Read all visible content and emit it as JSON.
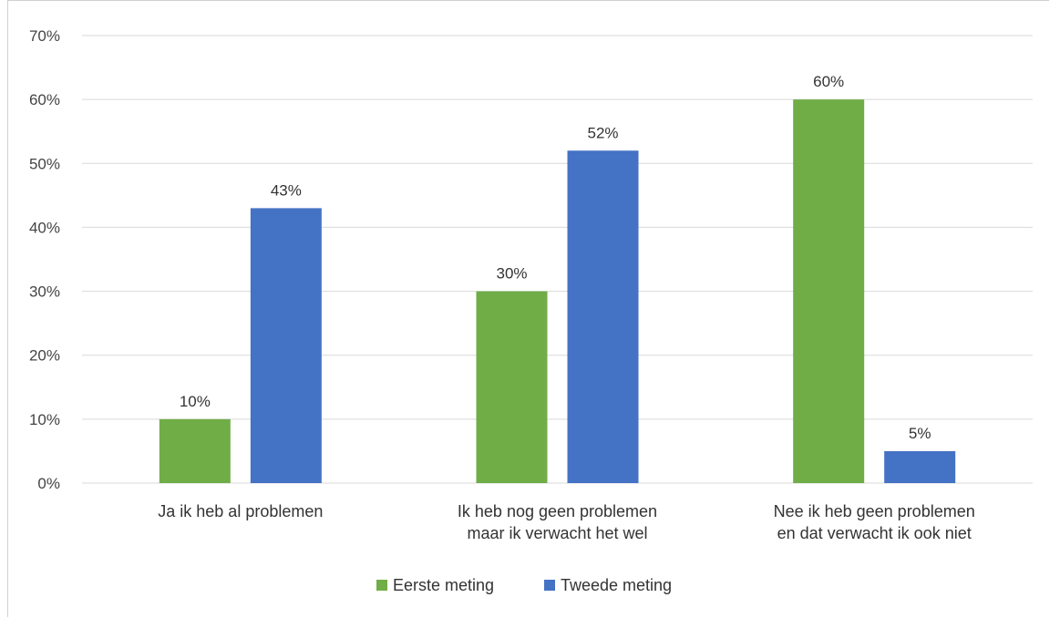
{
  "chart_data": {
    "type": "bar",
    "categories": [
      [
        "Ja ik heb al problemen"
      ],
      [
        "Ik heb nog geen problemen",
        "maar ik verwacht het wel"
      ],
      [
        "Nee ik heb geen problemen",
        "en dat verwacht ik ook niet"
      ]
    ],
    "series": [
      {
        "name": "Eerste meting",
        "values": [
          10,
          30,
          60
        ],
        "labels": [
          "10%",
          "30%",
          "60%"
        ],
        "color": "#70ad47"
      },
      {
        "name": "Tweede meting",
        "values": [
          43,
          52,
          5
        ],
        "labels": [
          "43%",
          "52%",
          "5%"
        ],
        "color": "#4472c4"
      }
    ],
    "ylim": [
      0,
      70
    ],
    "yticks": [
      {
        "value": 0,
        "label": "0%"
      },
      {
        "value": 10,
        "label": "10%"
      },
      {
        "value": 20,
        "label": "20%"
      },
      {
        "value": 30,
        "label": "30%"
      },
      {
        "value": 40,
        "label": "40%"
      },
      {
        "value": 50,
        "label": "50%"
      },
      {
        "value": 60,
        "label": "60%"
      },
      {
        "value": 70,
        "label": "70%"
      }
    ],
    "grid": true,
    "legend_position": "bottom"
  }
}
